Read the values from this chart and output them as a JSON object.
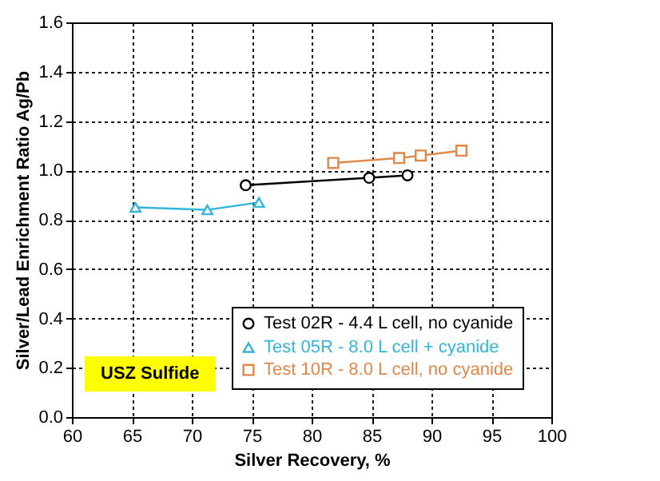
{
  "chart_data": {
    "type": "line",
    "xlabel": "Silver Recovery, %",
    "ylabel": "Silver/Lead Enrichment Ratio Ag/Pb",
    "xlim": [
      60,
      100
    ],
    "xticks": [
      60,
      65,
      70,
      75,
      80,
      85,
      90,
      95,
      100
    ],
    "ylim": [
      0,
      1.6
    ],
    "yticks": [
      {
        "value": 0,
        "label": "0.0"
      },
      {
        "value": 0.2,
        "label": "0.2"
      },
      {
        "value": 0.4,
        "label": "0.4"
      },
      {
        "value": 0.6,
        "label": "0.6"
      },
      {
        "value": 0.8,
        "label": "0.8"
      },
      {
        "value": 1,
        "label": "1.0"
      },
      {
        "value": 1.2,
        "label": "1.2"
      },
      {
        "value": 1.4,
        "label": "1.4"
      },
      {
        "value": 1.6,
        "label": "1.6"
      }
    ],
    "grid": true,
    "legend": "bottom right",
    "annotations": [
      "USZ Sulfide"
    ],
    "series": [
      {
        "name": "Test 02R - 4.4 L cell, no cyanide",
        "color": "#000000",
        "marker": "circle",
        "x": [
          74.5,
          84.8,
          88.0
        ],
        "values": [
          0.94,
          0.97,
          0.98
        ]
      },
      {
        "name": "Test 05R - 8.0 L cell + cyanide",
        "color": "#33b5d8",
        "marker": "triangle",
        "x": [
          65.3,
          71.3,
          75.6
        ],
        "values": [
          0.85,
          0.84,
          0.87
        ]
      },
      {
        "name": "Test 10R - 8.0 L cell, no cyanide",
        "color": "#e0884a",
        "marker": "square",
        "x": [
          81.8,
          87.3,
          89.1,
          92.5
        ],
        "values": [
          1.03,
          1.05,
          1.06,
          1.08
        ]
      }
    ]
  }
}
